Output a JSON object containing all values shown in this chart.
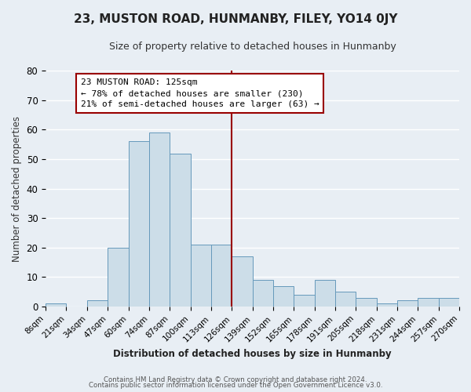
{
  "title": "23, MUSTON ROAD, HUNMANBY, FILEY, YO14 0JY",
  "subtitle": "Size of property relative to detached houses in Hunmanby",
  "xlabel": "Distribution of detached houses by size in Hunmanby",
  "ylabel": "Number of detached properties",
  "bin_labels": [
    "8sqm",
    "21sqm",
    "34sqm",
    "47sqm",
    "60sqm",
    "74sqm",
    "87sqm",
    "100sqm",
    "113sqm",
    "126sqm",
    "139sqm",
    "152sqm",
    "165sqm",
    "178sqm",
    "191sqm",
    "205sqm",
    "218sqm",
    "231sqm",
    "244sqm",
    "257sqm",
    "270sqm"
  ],
  "bar_values": [
    1,
    0,
    2,
    20,
    56,
    59,
    52,
    21,
    21,
    17,
    9,
    7,
    4,
    9,
    5,
    3,
    1,
    2,
    3,
    3
  ],
  "bar_color": "#ccdde8",
  "bar_edge_color": "#6699bb",
  "vline_color": "#990000",
  "ylim": [
    0,
    80
  ],
  "yticks": [
    0,
    10,
    20,
    30,
    40,
    50,
    60,
    70,
    80
  ],
  "annotation_title": "23 MUSTON ROAD: 125sqm",
  "annotation_line1": "← 78% of detached houses are smaller (230)",
  "annotation_line2": "21% of semi-detached houses are larger (63) →",
  "annotation_box_color": "#ffffff",
  "annotation_box_edge": "#990000",
  "footer1": "Contains HM Land Registry data © Crown copyright and database right 2024.",
  "footer2": "Contains public sector information licensed under the Open Government Licence v3.0.",
  "background_color": "#e8eef4",
  "plot_bg_color": "#e8eef4",
  "grid_color": "#ffffff",
  "title_fontsize": 11,
  "subtitle_fontsize": 9,
  "axis_label_fontsize": 8.5,
  "tick_fontsize": 7.5
}
